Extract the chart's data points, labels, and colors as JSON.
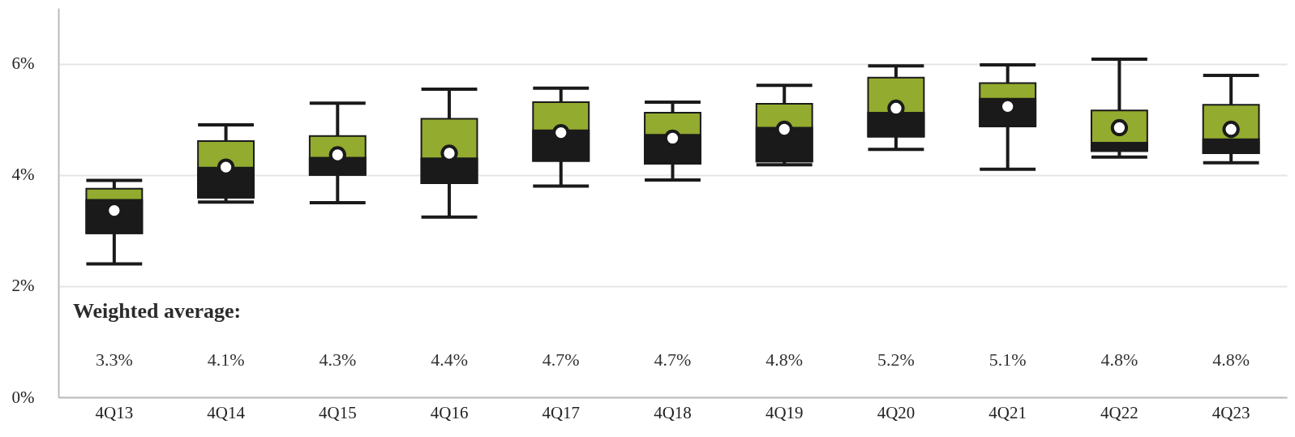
{
  "chart_data": {
    "type": "box",
    "categories": [
      "4Q13",
      "4Q14",
      "4Q15",
      "4Q16",
      "4Q17",
      "4Q18",
      "4Q19",
      "4Q20",
      "4Q21",
      "4Q22",
      "4Q23"
    ],
    "series": [
      {
        "color": "#93ab2f",
        "boxes": [
          {
            "low": 2.4,
            "q1": 2.95,
            "median": 3.55,
            "q3": 3.75,
            "high": 3.9,
            "mean": 3.36
          },
          {
            "low": 3.51,
            "q1": 3.59,
            "median": 4.13,
            "q3": 4.61,
            "high": 4.9,
            "mean": 4.14
          },
          {
            "low": 3.5,
            "q1": 4.0,
            "median": 4.31,
            "q3": 4.7,
            "high": 5.29,
            "mean": 4.36
          },
          {
            "low": 3.24,
            "q1": 3.85,
            "median": 4.3,
            "q3": 5.01,
            "high": 5.54,
            "mean": 4.39
          },
          {
            "low": 3.8,
            "q1": 4.25,
            "median": 4.8,
            "q3": 5.31,
            "high": 5.56,
            "mean": 4.76
          },
          {
            "low": 3.91,
            "q1": 4.2,
            "median": 4.72,
            "q3": 5.12,
            "high": 5.31,
            "mean": 4.66
          },
          {
            "low": 4.18,
            "q1": 4.24,
            "median": 4.85,
            "q3": 5.28,
            "high": 5.61,
            "mean": 4.82
          },
          {
            "low": 4.46,
            "q1": 4.69,
            "median": 5.12,
            "q3": 5.75,
            "high": 5.96,
            "mean": 5.2
          },
          {
            "low": 4.1,
            "q1": 4.87,
            "median": 5.37,
            "q3": 5.65,
            "high": 5.98,
            "mean": 5.23
          },
          {
            "low": 4.32,
            "q1": 4.43,
            "median": 4.58,
            "q3": 5.16,
            "high": 6.08,
            "mean": 4.85
          },
          {
            "low": 4.22,
            "q1": 4.39,
            "median": 4.64,
            "q3": 5.26,
            "high": 5.79,
            "mean": 4.82
          }
        ]
      }
    ],
    "ylim": [
      0,
      7
    ],
    "yticks": [
      {
        "value": 0,
        "label": "0%"
      },
      {
        "value": 2,
        "label": "2%"
      },
      {
        "value": 4,
        "label": "4%"
      },
      {
        "value": 6,
        "label": "6%"
      }
    ],
    "grid": "y",
    "annotations": [
      "Weighted average:",
      "3.3%",
      "4.1%",
      "4.3%",
      "4.4%",
      "4.7%",
      "4.7%",
      "4.8%",
      "5.2%",
      "5.1%",
      "4.8%",
      "4.8%"
    ]
  }
}
